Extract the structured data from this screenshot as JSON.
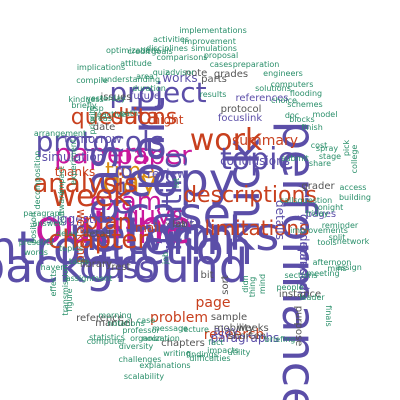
{
  "title": "",
  "palette": {
    "black": "#3a3a3a",
    "purple": "#5b4ea8",
    "magenta": "#c9189c",
    "orange": "#d98c11",
    "teal": "#2a8f6a",
    "red": "#c8401e",
    "gray": "#555555"
  },
  "words": [
    {
      "text": "report",
      "weight": 100,
      "color": "black"
    },
    {
      "text": "time",
      "weight": 80,
      "color": "orange"
    },
    {
      "text": "day",
      "weight": 72,
      "color": "orange"
    },
    {
      "text": "paper",
      "weight": 70,
      "color": "magenta"
    },
    {
      "text": "guys",
      "weight": 68,
      "color": "magenta"
    },
    {
      "text": "exam",
      "weight": 64,
      "color": "magenta"
    },
    {
      "text": "papers",
      "weight": 58,
      "color": "magenta"
    },
    {
      "text": "networks",
      "weight": 56,
      "color": "purple"
    },
    {
      "text": "outline",
      "weight": 56,
      "color": "magenta"
    },
    {
      "text": "introduction",
      "weight": 55,
      "color": "purple"
    },
    {
      "text": "term",
      "weight": 54,
      "color": "purple"
    },
    {
      "text": "routing",
      "weight": 53,
      "color": "purple"
    },
    {
      "text": "copy",
      "weight": 52,
      "color": "purple"
    },
    {
      "text": "case",
      "weight": 51,
      "color": "purple"
    },
    {
      "text": "performance",
      "weight": 50,
      "color": "purple"
    },
    {
      "text": "part",
      "weight": 49,
      "color": "purple"
    },
    {
      "text": "ideas",
      "weight": 48,
      "color": "purple"
    },
    {
      "text": "background",
      "weight": 48,
      "color": "purple"
    },
    {
      "text": "luck",
      "weight": 47,
      "color": "purple"
    },
    {
      "text": "work",
      "weight": 47,
      "color": "red"
    },
    {
      "text": "project",
      "weight": 45,
      "color": "purple"
    },
    {
      "text": "protocols",
      "weight": 45,
      "color": "purple"
    },
    {
      "text": "idea",
      "weight": 44,
      "color": "purple"
    },
    {
      "text": "week",
      "weight": 42,
      "color": "red"
    },
    {
      "text": "class",
      "weight": 42,
      "color": "purple"
    },
    {
      "text": "topic",
      "weight": 40,
      "color": "purple"
    },
    {
      "text": "chapter",
      "weight": 38,
      "color": "red"
    },
    {
      "text": "questions",
      "weight": 38,
      "color": "red"
    },
    {
      "text": "analysis",
      "weight": 36,
      "color": "red"
    },
    {
      "text": "descriptions",
      "weight": 36,
      "color": "red"
    },
    {
      "text": "limitations",
      "weight": 35,
      "color": "red"
    },
    {
      "text": "plan",
      "weight": 34,
      "color": "red"
    },
    {
      "text": "data",
      "weight": 34,
      "color": "red"
    },
    {
      "text": "summary",
      "weight": 34,
      "color": "red"
    },
    {
      "text": "research",
      "weight": 33,
      "color": "red"
    },
    {
      "text": "page",
      "weight": 33,
      "color": "red"
    },
    {
      "text": "problem",
      "weight": 32,
      "color": "red"
    },
    {
      "text": "conclusions",
      "weight": 32,
      "color": "purple"
    },
    {
      "text": "mandeep",
      "weight": 31,
      "color": "purple"
    },
    {
      "text": "gradeprasad",
      "weight": 31,
      "color": "purple"
    },
    {
      "text": "thanks",
      "weight": 30,
      "color": "red"
    },
    {
      "text": "night",
      "weight": 30,
      "color": "red"
    },
    {
      "text": "ajay",
      "weight": 30,
      "color": "purple"
    },
    {
      "text": "works",
      "weight": 29,
      "color": "purple"
    },
    {
      "text": "tomorrow",
      "weight": 29,
      "color": "purple"
    },
    {
      "text": "simulation",
      "weight": 28,
      "color": "purple"
    },
    {
      "text": "details",
      "weight": 28,
      "color": "purple"
    },
    {
      "text": "review",
      "weight": 27,
      "color": "purple"
    },
    {
      "text": "suggestion",
      "weight": 27,
      "color": "purple"
    },
    {
      "text": "limit",
      "weight": 27,
      "color": "purple"
    },
    {
      "text": "paragraphs",
      "weight": 27,
      "color": "purple"
    },
    {
      "text": "future",
      "weight": 26,
      "color": "purple"
    },
    {
      "text": "pages",
      "weight": 26,
      "color": "purple"
    },
    {
      "text": "references",
      "weight": 26,
      "color": "purple"
    },
    {
      "text": "focuslink",
      "weight": 26,
      "color": "purple"
    },
    {
      "text": "weekend",
      "weight": 25,
      "color": "red"
    },
    {
      "text": "mail",
      "weight": 25,
      "color": "red"
    },
    {
      "text": "grader",
      "weight": 25,
      "color": "gray"
    },
    {
      "text": "sample",
      "weight": 24,
      "color": "gray"
    },
    {
      "text": "weeks",
      "weight": 24,
      "color": "gray"
    },
    {
      "text": "shorten",
      "weight": 24,
      "color": "gray"
    },
    {
      "text": "mobility",
      "weight": 23,
      "color": "gray"
    },
    {
      "text": "detail",
      "weight": 23,
      "color": "gray"
    },
    {
      "text": "library",
      "weight": 23,
      "color": "gray"
    },
    {
      "text": "chapters",
      "weight": 23,
      "color": "gray"
    },
    {
      "text": "sort",
      "weight": 22,
      "color": "gray"
    },
    {
      "text": "lab",
      "weight": 22,
      "color": "gray"
    },
    {
      "text": "bit",
      "weight": 22,
      "color": "gray"
    },
    {
      "text": "parts",
      "weight": 22,
      "color": "gray"
    },
    {
      "text": "grades",
      "weight": 22,
      "color": "gray"
    },
    {
      "text": "instance",
      "weight": 22,
      "color": "gray"
    },
    {
      "text": "protocol",
      "weight": 22,
      "color": "gray"
    },
    {
      "text": "purpose",
      "weight": 21,
      "color": "gray"
    },
    {
      "text": "rest",
      "weight": 21,
      "color": "gray"
    },
    {
      "text": "issues",
      "weight": 21,
      "color": "gray"
    },
    {
      "text": "date",
      "weight": 21,
      "color": "gray"
    },
    {
      "text": "note",
      "weight": 21,
      "color": "gray"
    },
    {
      "text": "reference",
      "weight": 21,
      "color": "gray"
    },
    {
      "text": "manuel",
      "weight": 21,
      "color": "gray"
    },
    {
      "text": "implementations",
      "weight": 20,
      "color": "teal"
    },
    {
      "text": "activities",
      "weight": 20,
      "color": "teal"
    },
    {
      "text": "improvement",
      "weight": 20,
      "color": "teal"
    },
    {
      "text": "disciplines",
      "weight": 20,
      "color": "teal"
    },
    {
      "text": "simulations",
      "weight": 20,
      "color": "teal"
    },
    {
      "text": "comparisons",
      "weight": 20,
      "color": "teal"
    },
    {
      "text": "proposal",
      "weight": 20,
      "color": "teal"
    },
    {
      "text": "preparation",
      "weight": 20,
      "color": "teal"
    },
    {
      "text": "credit",
      "weight": 20,
      "color": "teal"
    },
    {
      "text": "goals",
      "weight": 20,
      "color": "teal"
    },
    {
      "text": "optimizations",
      "weight": 20,
      "color": "teal"
    },
    {
      "text": "cases",
      "weight": 20,
      "color": "teal"
    },
    {
      "text": "improvements",
      "weight": 20,
      "color": "teal"
    },
    {
      "text": "meeting",
      "weight": 20,
      "color": "teal"
    },
    {
      "text": "computers",
      "weight": 20,
      "color": "teal"
    },
    {
      "text": "flooding",
      "weight": 20,
      "color": "teal"
    },
    {
      "text": "implications",
      "weight": 20,
      "color": "teal"
    },
    {
      "text": "attitude",
      "weight": 20,
      "color": "teal"
    },
    {
      "text": "quiz",
      "weight": 20,
      "color": "teal"
    },
    {
      "text": "advisor",
      "weight": 20,
      "color": "teal"
    },
    {
      "text": "compile",
      "weight": 20,
      "color": "teal"
    },
    {
      "text": "understanding",
      "weight": 20,
      "color": "teal"
    },
    {
      "text": "area",
      "weight": 20,
      "color": "teal"
    },
    {
      "text": "engineers",
      "weight": 20,
      "color": "teal"
    },
    {
      "text": "results",
      "weight": 20,
      "color": "teal"
    },
    {
      "text": "solutions",
      "weight": 20,
      "color": "teal"
    },
    {
      "text": "choice",
      "weight": 20,
      "color": "teal"
    },
    {
      "text": "kindness",
      "weight": 20,
      "color": "teal"
    },
    {
      "text": "yesterday",
      "weight": 20,
      "color": "teal"
    },
    {
      "text": "duration",
      "weight": 20,
      "color": "teal"
    },
    {
      "text": "reactive",
      "weight": 20,
      "color": "teal"
    },
    {
      "text": "schemes",
      "weight": 20,
      "color": "teal"
    },
    {
      "text": "path",
      "weight": 20,
      "color": "teal"
    },
    {
      "text": "doc",
      "weight": 20,
      "color": "teal"
    },
    {
      "text": "blocks",
      "weight": 20,
      "color": "teal"
    },
    {
      "text": "model",
      "weight": 20,
      "color": "teal"
    },
    {
      "text": "arrangement",
      "weight": 20,
      "color": "teal"
    },
    {
      "text": "areas",
      "weight": 20,
      "color": "teal"
    },
    {
      "text": "finish",
      "weight": 20,
      "color": "teal"
    },
    {
      "text": "spray",
      "weight": 20,
      "color": "teal"
    },
    {
      "text": "stage",
      "weight": 20,
      "color": "teal"
    },
    {
      "text": "share",
      "weight": 20,
      "color": "teal"
    },
    {
      "text": "pick",
      "weight": 20,
      "color": "teal"
    },
    {
      "text": "college",
      "weight": 20,
      "color": "teal"
    },
    {
      "text": "access",
      "weight": 20,
      "color": "teal"
    },
    {
      "text": "decomposition",
      "weight": 20,
      "color": "teal"
    },
    {
      "text": "experiment",
      "weight": 20,
      "color": "teal"
    },
    {
      "text": "impact",
      "weight": 20,
      "color": "teal"
    },
    {
      "text": "assignment",
      "weight": 20,
      "color": "teal"
    },
    {
      "text": "callsquestion",
      "weight": 20,
      "color": "teal"
    },
    {
      "text": "building",
      "weight": 20,
      "color": "teal"
    },
    {
      "text": "tonight",
      "weight": 20,
      "color": "teal"
    },
    {
      "text": "friday",
      "weight": 20,
      "color": "teal"
    },
    {
      "text": "reminder",
      "weight": 20,
      "color": "teal"
    },
    {
      "text": "paragraph",
      "weight": 20,
      "color": "teal"
    },
    {
      "text": "answer",
      "weight": 20,
      "color": "teal"
    },
    {
      "text": "software",
      "weight": 20,
      "color": "teal"
    },
    {
      "text": "presents",
      "weight": 20,
      "color": "teal"
    },
    {
      "text": "delay",
      "weight": 20,
      "color": "teal"
    },
    {
      "text": "words",
      "weight": 20,
      "color": "teal"
    },
    {
      "text": "topics",
      "weight": 20,
      "color": "teal"
    },
    {
      "text": "table",
      "weight": 20,
      "color": "teal"
    },
    {
      "text": "split",
      "weight": 20,
      "color": "teal"
    },
    {
      "text": "network",
      "weight": 20,
      "color": "teal"
    },
    {
      "text": "assign",
      "weight": 20,
      "color": "teal"
    },
    {
      "text": "afternoon",
      "weight": 20,
      "color": "teal"
    },
    {
      "text": "mins",
      "weight": 20,
      "color": "teal"
    },
    {
      "text": "leader",
      "weight": 20,
      "color": "teal"
    },
    {
      "text": "sections",
      "weight": 20,
      "color": "teal"
    },
    {
      "text": "tools",
      "weight": 20,
      "color": "teal"
    },
    {
      "text": "people",
      "weight": 20,
      "color": "teal"
    },
    {
      "text": "haven",
      "weight": 20,
      "color": "teal"
    },
    {
      "text": "effects",
      "weight": 20,
      "color": "teal"
    },
    {
      "text": "figure",
      "weight": 20,
      "color": "teal"
    },
    {
      "text": "transmission",
      "weight": 20,
      "color": "teal"
    },
    {
      "text": "morning",
      "weight": 20,
      "color": "teal"
    },
    {
      "text": "notations",
      "weight": 20,
      "color": "teal"
    },
    {
      "text": "case",
      "weight": 20,
      "color": "teal"
    },
    {
      "text": "professor",
      "weight": 20,
      "color": "teal"
    },
    {
      "text": "statistics",
      "weight": 20,
      "color": "teal"
    },
    {
      "text": "computer",
      "weight": 20,
      "color": "teal"
    },
    {
      "text": "diversity",
      "weight": 20,
      "color": "teal"
    },
    {
      "text": "message",
      "weight": 20,
      "color": "teal"
    },
    {
      "text": "lecture",
      "weight": 20,
      "color": "teal"
    },
    {
      "text": "impacts",
      "weight": 20,
      "color": "teal"
    },
    {
      "text": "utility",
      "weight": 20,
      "color": "teal"
    },
    {
      "text": "briefing",
      "weight": 20,
      "color": "teal"
    },
    {
      "text": "finals",
      "weight": 20,
      "color": "teal"
    },
    {
      "text": "fact",
      "weight": 20,
      "color": "teal"
    },
    {
      "text": "organization",
      "weight": 20,
      "color": "teal"
    },
    {
      "text": "writing",
      "weight": 20,
      "color": "teal"
    },
    {
      "text": "findings",
      "weight": 20,
      "color": "teal"
    },
    {
      "text": "challenges",
      "weight": 20,
      "color": "teal"
    },
    {
      "text": "explanations",
      "weight": 20,
      "color": "teal"
    },
    {
      "text": "difficulties",
      "weight": 20,
      "color": "teal"
    },
    {
      "text": "scalability",
      "weight": 20,
      "color": "teal"
    },
    {
      "text": "noon",
      "weight": 20,
      "color": "teal"
    },
    {
      "text": "lot",
      "weight": 20,
      "color": "teal"
    },
    {
      "text": "job",
      "weight": 20,
      "color": "teal"
    },
    {
      "text": "didn",
      "weight": 20,
      "color": "teal"
    },
    {
      "text": "mind",
      "weight": 20,
      "color": "teal"
    },
    {
      "text": "thing",
      "weight": 20,
      "color": "teal"
    },
    {
      "text": "briefly",
      "weight": 20,
      "color": "teal"
    },
    {
      "text": "priority",
      "weight": 20,
      "color": "teal"
    },
    {
      "text": "resp",
      "weight": 20,
      "color": "teal"
    },
    {
      "text": "position",
      "weight": 20,
      "color": "teal"
    },
    {
      "text": "submit",
      "weight": 20,
      "color": "teal"
    },
    {
      "text": "cost",
      "weight": 20,
      "color": "teal"
    }
  ]
}
